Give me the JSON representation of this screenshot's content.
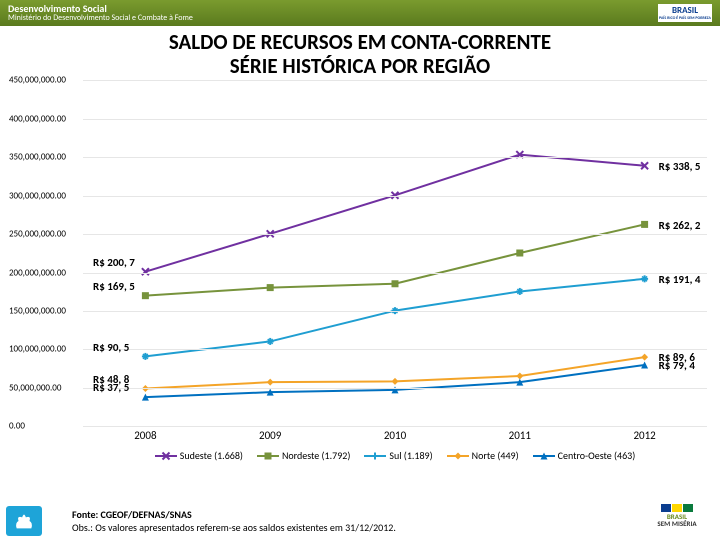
{
  "header": {
    "line1": "Desenvolvimento Social",
    "line2": "Ministério do Desenvolvimento Social e Combate à Fome",
    "brand": "BRASIL",
    "brand_sub": "PAÍS RICO É PAÍS SEM POBREZA"
  },
  "title_l1": "SALDO DE RECURSOS EM CONTA-CORRENTE",
  "title_l2": "SÉRIE HISTÓRICA POR REGIÃO",
  "chart": {
    "type": "line",
    "background_color": "#ffffff",
    "grid_color": "#e6e6e6",
    "y_axis": {
      "min": 0,
      "max": 450000000,
      "step": 50000000,
      "ticks": [
        "0.00",
        "50,000,000.00",
        "100,000,000.00",
        "150,000,000.00",
        "200,000,000.00",
        "250,000,000.00",
        "300,000,000.00",
        "350,000,000.00",
        "400,000,000.00",
        "450,000,000.00"
      ]
    },
    "x_categories": [
      "2008",
      "2009",
      "2010",
      "2011",
      "2012"
    ],
    "series": [
      {
        "name": "Sudeste (1.668)",
        "color": "#7030a0",
        "marker": "x",
        "values": [
          200700000,
          250000000,
          300000000,
          353000000,
          338500000
        ]
      },
      {
        "name": "Nordeste (1.792)",
        "color": "#77933c",
        "marker": "square",
        "values": [
          169500000,
          180000000,
          185000000,
          225000000,
          262200000
        ]
      },
      {
        "name": "Sul (1.189)",
        "color": "#1f9ed1",
        "marker": "star",
        "values": [
          90500000,
          110000000,
          150000000,
          175000000,
          191400000
        ]
      },
      {
        "name": "Norte (449)",
        "color": "#f4a428",
        "marker": "diamond",
        "values": [
          48800000,
          57000000,
          58000000,
          65000000,
          89600000
        ]
      },
      {
        "name": "Centro-Oeste (463)",
        "color": "#0070c0",
        "marker": "triangle",
        "values": [
          37500000,
          44000000,
          47000000,
          57000000,
          79400000
        ]
      }
    ],
    "start_labels": [
      {
        "text": "R$ 200, 7",
        "series": 0
      },
      {
        "text": "R$ 169, 5",
        "series": 1
      },
      {
        "text": "R$ 90, 5",
        "series": 2
      },
      {
        "text": "R$ 48, 8",
        "series": 3
      },
      {
        "text": "R$ 37, 5",
        "series": 4
      }
    ],
    "end_labels": [
      {
        "text": "R$ 338, 5",
        "series": 0
      },
      {
        "text": "R$ 262, 2",
        "series": 1
      },
      {
        "text": "R$ 191, 4",
        "series": 2
      },
      {
        "text": "R$ 89, 6",
        "series": 3
      },
      {
        "text": "R$ 79, 4",
        "series": 4
      }
    ],
    "line_width": 2,
    "marker_size": 7,
    "label_fontsize": 11,
    "tick_fontsize": 9
  },
  "footer": {
    "source": "Fonte: CGEOF/DEFNAS/SNAS",
    "obs": "Obs.: Os valores apresentados referem-se aos saldos existentes em 31/12/2012.",
    "logo_right_l1": "BRASIL",
    "logo_right_l2": "SEM MISÉRIA"
  }
}
